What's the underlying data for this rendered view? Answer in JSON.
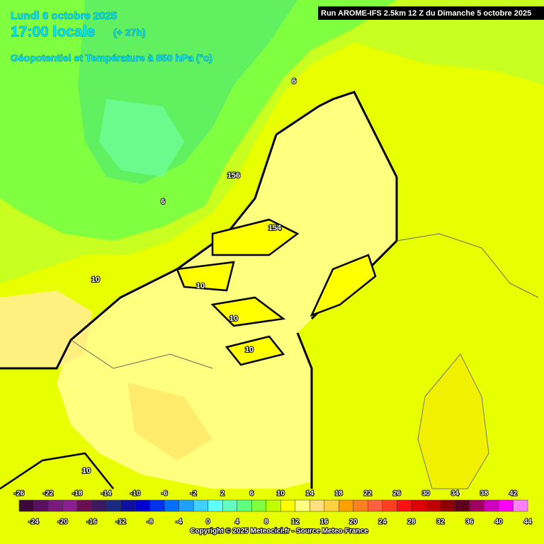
{
  "header": {
    "date": "Lundi 6 octobre 2025",
    "time": "17:00 locale",
    "lead": "(+ 27h)",
    "field": "Géopotentiel et Température à 850 hPa (°c)",
    "run": "Run AROME-IFS 2.5km 12 Z du Dimanche 5 octobre 2025"
  },
  "map": {
    "labels": [
      "6",
      "156",
      "6",
      "154",
      "10",
      "10",
      "10",
      "10",
      "10"
    ]
  },
  "scale": {
    "ticks": [
      -26,
      -24,
      -22,
      -20,
      -18,
      -16,
      -14,
      -12,
      -10,
      -8,
      -6,
      -4,
      -2,
      0,
      2,
      4,
      6,
      8,
      10,
      12,
      14,
      16,
      18,
      20,
      22,
      24,
      26,
      28,
      30,
      32,
      34,
      36,
      38,
      40,
      42,
      44
    ],
    "colors": [
      "#3a0a3a",
      "#5a1060",
      "#7a1a80",
      "#8a2090",
      "#6a1050",
      "#3a1a60",
      "#1a2a80",
      "#1010a0",
      "#0000d0",
      "#0030f0",
      "#0070ff",
      "#20a0ff",
      "#40d0ff",
      "#60ffff",
      "#60ffc0",
      "#60ff80",
      "#80ff40",
      "#c0ff00",
      "#ffff00",
      "#ffff80",
      "#ffe080",
      "#ffd040",
      "#ffa000",
      "#ff8020",
      "#ff6040",
      "#ff4020",
      "#ff1010",
      "#e00000",
      "#c00000",
      "#900000",
      "#600020",
      "#a00060",
      "#d000c0",
      "#ff00ff",
      "#ff80ff"
    ]
  },
  "footer": {
    "copyright": "Copyright © 2025 Meteocici.fr - Source Meteo-France"
  }
}
